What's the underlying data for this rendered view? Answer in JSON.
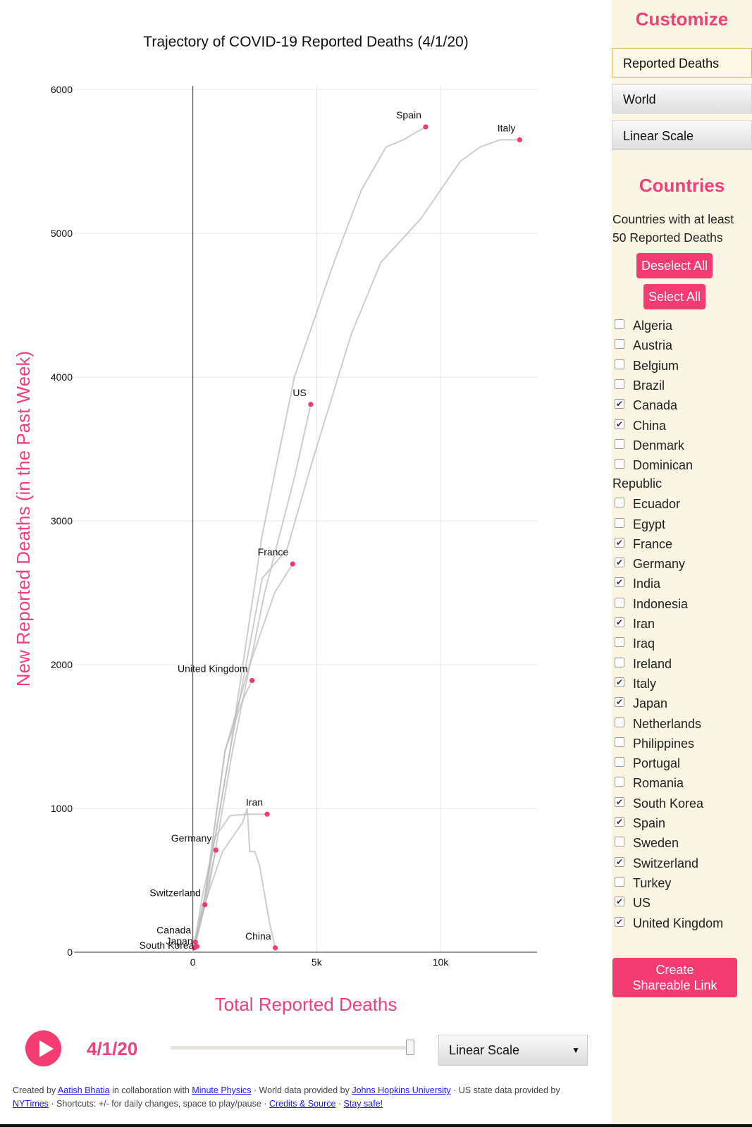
{
  "chart": {
    "title": "Trajectory of COVID-19 Reported Deaths (4/1/20)",
    "xlabel": "Total Reported Deaths",
    "ylabel": "New Reported Deaths (in the Past Week)"
  },
  "chart_data": {
    "type": "line",
    "title": "Trajectory of COVID-19 Reported Deaths (4/1/20)",
    "xlabel": "Total Reported Deaths",
    "ylabel": "New Reported Deaths (in the Past Week)",
    "xlim": [
      -4800,
      13900
    ],
    "ylim": [
      0,
      6000
    ],
    "x_ticks": [
      {
        "value": 0,
        "label": "0"
      },
      {
        "value": 5000,
        "label": "5k"
      },
      {
        "value": 10000,
        "label": "10k"
      }
    ],
    "y_ticks": [
      {
        "value": 0,
        "label": "0"
      },
      {
        "value": 1000,
        "label": "1000"
      },
      {
        "value": 2000,
        "label": "2000"
      },
      {
        "value": 3000,
        "label": "3000"
      },
      {
        "value": 4000,
        "label": "4000"
      },
      {
        "value": 5000,
        "label": "5000"
      },
      {
        "value": 6000,
        "label": "6000"
      }
    ],
    "grid": true,
    "point_color": "#f03b6e",
    "line_color": "#bdbdbd",
    "series": [
      {
        "name": "Spain",
        "label_pos": "above",
        "x": [
          0,
          500,
          1500,
          2800,
          4100,
          5700,
          6800,
          7800,
          8500,
          9400
        ],
        "y": [
          0,
          400,
          1400,
          2900,
          4000,
          4800,
          5300,
          5600,
          5650,
          5740
        ]
      },
      {
        "name": "Italy",
        "label_pos": "above",
        "x": [
          0,
          500,
          1500,
          2800,
          3800,
          4800,
          6400,
          7600,
          9200,
          10000,
          10800,
          11600,
          12400,
          13200
        ],
        "y": [
          0,
          400,
          1400,
          2600,
          2800,
          3400,
          4300,
          4800,
          5100,
          5300,
          5500,
          5600,
          5650,
          5650
        ]
      },
      {
        "name": "US",
        "label_pos": "above",
        "x": [
          0,
          600,
          1600,
          2900,
          4100,
          4760
        ],
        "y": [
          0,
          400,
          1400,
          2500,
          3300,
          3810
        ]
      },
      {
        "name": "France",
        "label_pos": "above",
        "x": [
          0,
          500,
          1300,
          2300,
          3300,
          4030
        ],
        "y": [
          0,
          400,
          1400,
          2000,
          2500,
          2700
        ]
      },
      {
        "name": "United Kingdom",
        "label_pos": "above",
        "x": [
          0,
          500,
          1300,
          2000,
          2390
        ],
        "y": [
          0,
          400,
          1400,
          1750,
          1890
        ]
      },
      {
        "name": "Iran",
        "label_pos": "above",
        "x": [
          0,
          400,
          900,
          1500,
          2200,
          3000
        ],
        "y": [
          0,
          400,
          800,
          950,
          960,
          960
        ]
      },
      {
        "name": "China",
        "label_pos": "above",
        "x": [
          0,
          600,
          1200,
          2000,
          2200,
          2300,
          2500,
          2700,
          2900,
          3100,
          3330
        ],
        "y": [
          0,
          400,
          700,
          900,
          1000,
          700,
          700,
          600,
          400,
          200,
          30
        ]
      },
      {
        "name": "Germany",
        "label_pos": "above",
        "x": [
          0,
          300,
          600,
          931
        ],
        "y": [
          0,
          200,
          450,
          710
        ]
      },
      {
        "name": "Switzerland",
        "label_pos": "above",
        "x": [
          0,
          200,
          488
        ],
        "y": [
          0,
          120,
          330
        ]
      },
      {
        "name": "Canada",
        "label_pos": "above",
        "x": [
          0,
          60,
          101
        ],
        "y": [
          0,
          40,
          70
        ]
      },
      {
        "name": "South Korea",
        "label_pos": "left",
        "x": [
          0,
          90,
          165
        ],
        "y": [
          0,
          40,
          40
        ]
      },
      {
        "name": "Japan",
        "label_pos": "below",
        "x": [
          0,
          30,
          57
        ],
        "y": [
          0,
          20,
          30
        ]
      }
    ]
  },
  "sidebar": {
    "heading": "Customize",
    "selects": {
      "metric": "Reported Deaths",
      "region": "World",
      "scale": "Linear Scale"
    },
    "countries_heading": "Countries",
    "subtitle": "Countries with at least 50 Reported Deaths",
    "deselect_all": "Deselect All",
    "select_all": "Select All",
    "countries": [
      {
        "name": "Algeria",
        "checked": false
      },
      {
        "name": "Austria",
        "checked": false
      },
      {
        "name": "Belgium",
        "checked": false
      },
      {
        "name": "Brazil",
        "checked": false
      },
      {
        "name": "Canada",
        "checked": true
      },
      {
        "name": "China",
        "checked": true
      },
      {
        "name": "Denmark",
        "checked": false
      },
      {
        "name": "Dominican",
        "checked": false
      },
      {
        "name": "Ecuador",
        "checked": false
      },
      {
        "name": "Egypt",
        "checked": false
      },
      {
        "name": "France",
        "checked": true
      },
      {
        "name": "Germany",
        "checked": true
      },
      {
        "name": "India",
        "checked": true
      },
      {
        "name": "Indonesia",
        "checked": false
      },
      {
        "name": "Iran",
        "checked": true
      },
      {
        "name": "Iraq",
        "checked": false
      },
      {
        "name": "Ireland",
        "checked": false
      },
      {
        "name": "Italy",
        "checked": true
      },
      {
        "name": "Japan",
        "checked": true
      },
      {
        "name": "Netherlands",
        "checked": false
      },
      {
        "name": "Philippines",
        "checked": false
      },
      {
        "name": "Portugal",
        "checked": false
      },
      {
        "name": "Romania",
        "checked": false
      },
      {
        "name": "South Korea",
        "checked": true
      },
      {
        "name": "Spain",
        "checked": true
      },
      {
        "name": "Sweden",
        "checked": false
      },
      {
        "name": "Switzerland",
        "checked": true
      },
      {
        "name": "Turkey",
        "checked": false
      },
      {
        "name": "US",
        "checked": true
      },
      {
        "name": "United Kingdom",
        "checked": true
      }
    ],
    "dominican_wrap": "Republic",
    "share_button": "Create Shareable Link"
  },
  "controls": {
    "date": "4/1/20",
    "scale_option": "Linear Scale",
    "slider_fraction": 1.0
  },
  "footer": {
    "t1": "Created by ",
    "link_author": "Aatish Bhatia",
    "t2": " in collaboration with ",
    "link_mp": "Minute Physics",
    "t3": " · World data provided by ",
    "link_jhu": "Johns Hopkins University",
    "t4": " · US state data provided by ",
    "link_nyt": "NYTimes",
    "t5": " · Shortcuts: +/- for daily changes, space to play/pause · ",
    "link_credits": "Credits & Source",
    "t6": " · ",
    "link_safe": "Stay safe!"
  }
}
